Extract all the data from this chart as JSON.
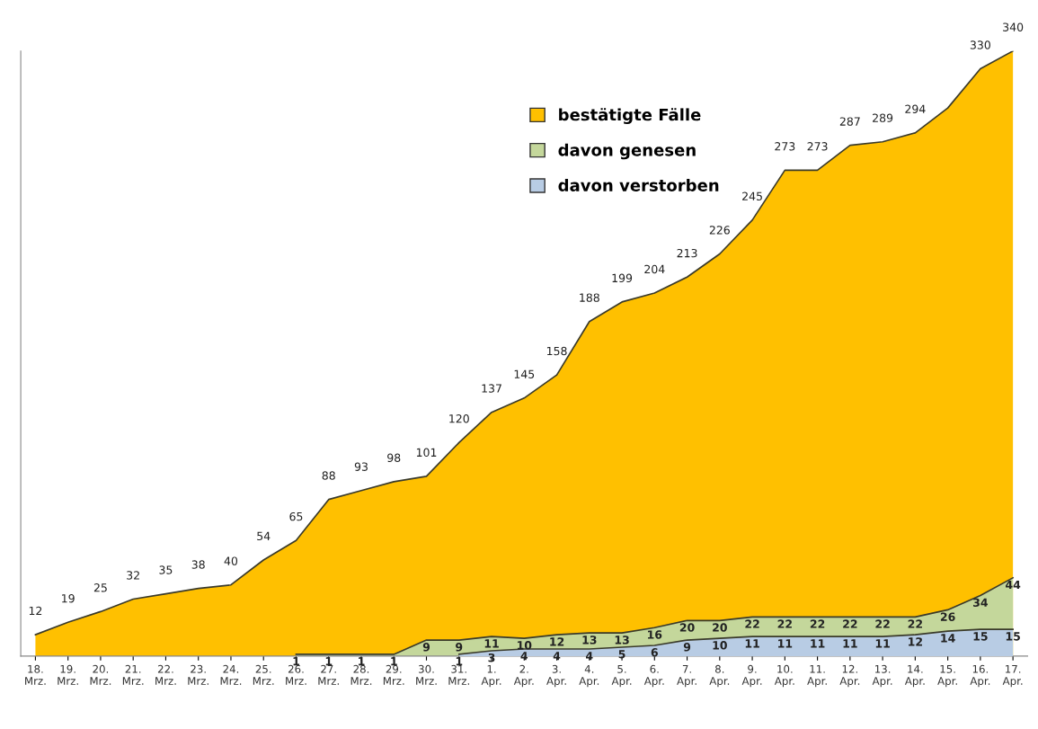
{
  "chart_data": {
    "type": "area",
    "categories": [
      "18.\nMrz.",
      "19.\nMrz.",
      "20.\nMrz.",
      "21.\nMrz.",
      "22.\nMrz.",
      "23.\nMrz.",
      "24.\nMrz.",
      "25.\nMrz.",
      "26.\nMrz.",
      "27.\nMrz.",
      "28.\nMrz.",
      "29.\nMrz.",
      "30.\nMrz.",
      "31.\nMrz.",
      "1.\nApr.",
      "2.\nApr.",
      "3.\nApr.",
      "4.\nApr.",
      "5.\nApr.",
      "6.\nApr.",
      "7.\nApr.",
      "8.\nApr.",
      "9.\nApr.",
      "10.\nApr.",
      "11.\nApr.",
      "12.\nApr.",
      "13.\nApr.",
      "14.\nApr.",
      "15.\nApr.",
      "16.\nApr.",
      "17.\nApr."
    ],
    "series": [
      {
        "name": "bestätigte Fälle",
        "color": "#ffc000",
        "values": [
          12,
          19,
          25,
          32,
          35,
          38,
          40,
          54,
          65,
          88,
          93,
          98,
          101,
          120,
          137,
          145,
          158,
          188,
          199,
          204,
          213,
          226,
          245,
          273,
          273,
          287,
          289,
          294,
          308,
          330,
          340
        ],
        "value_labels": [
          "12",
          "19",
          "25",
          "32",
          "35",
          "38",
          "40",
          "54",
          "65",
          "88",
          "93",
          "98",
          "101",
          "120",
          "137",
          "145",
          "158",
          "188",
          "199",
          "204",
          "213",
          "226",
          "245",
          "273",
          "273",
          "287",
          "289",
          "294",
          null,
          "330",
          "340"
        ]
      },
      {
        "name": "davon genesen",
        "color": "#c4d79b",
        "values": [
          null,
          null,
          null,
          null,
          null,
          null,
          null,
          null,
          1,
          1,
          1,
          1,
          9,
          9,
          11,
          10,
          12,
          13,
          13,
          16,
          20,
          20,
          22,
          22,
          22,
          22,
          22,
          22,
          26,
          34,
          44
        ],
        "value_labels": [
          null,
          null,
          null,
          null,
          null,
          null,
          null,
          null,
          "1",
          "1",
          "1",
          "1",
          "9",
          "9",
          "11",
          "10",
          "12",
          "13",
          "13",
          "16",
          "20",
          "20",
          "22",
          "22",
          "22",
          "22",
          "22",
          "22",
          "26",
          "34",
          "44"
        ]
      },
      {
        "name": "davon verstorben",
        "color": "#b8cce4",
        "values": [
          null,
          null,
          null,
          null,
          null,
          null,
          null,
          null,
          null,
          null,
          null,
          null,
          null,
          1,
          3,
          4,
          4,
          4,
          5,
          6,
          9,
          10,
          11,
          11,
          11,
          11,
          11,
          12,
          14,
          15,
          15
        ],
        "value_labels": [
          null,
          null,
          null,
          null,
          null,
          null,
          null,
          null,
          null,
          null,
          null,
          null,
          null,
          "1",
          "3",
          "4",
          "4",
          "4",
          "5",
          "6",
          "9",
          "10",
          "11",
          "11",
          "11",
          "11",
          "11",
          "12",
          "14",
          "15",
          "15"
        ]
      }
    ],
    "legend": "top center",
    "grid": false,
    "tick_labels": "x"
  }
}
